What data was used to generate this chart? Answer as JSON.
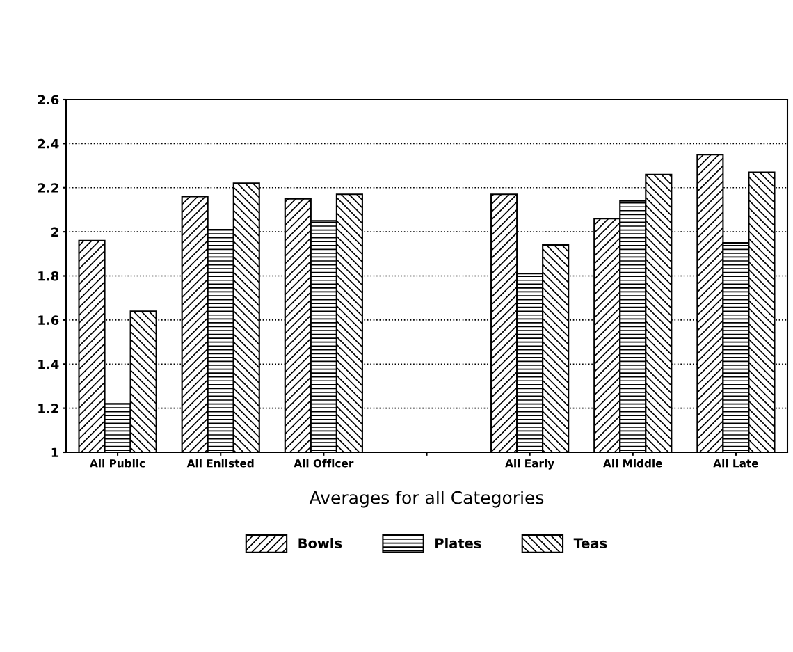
{
  "chart_data": {
    "type": "bar",
    "xlabel": "Averages for all Categories",
    "categories": [
      "All Public",
      "All Enlisted",
      "All Officer",
      null,
      "All Early",
      "All Middle",
      "All Late"
    ],
    "series": [
      {
        "name": "Bowls",
        "color": "#000000",
        "values": [
          1.96,
          2.16,
          2.15,
          null,
          2.17,
          2.06,
          2.35
        ]
      },
      {
        "name": "Plates",
        "color": "#000000",
        "values": [
          1.22,
          2.01,
          2.05,
          null,
          1.81,
          2.14,
          1.95
        ]
      },
      {
        "name": "Teas",
        "color": "#000000",
        "values": [
          1.64,
          2.22,
          2.17,
          null,
          1.94,
          2.26,
          2.27
        ]
      }
    ],
    "ylim": [
      1,
      2.6
    ],
    "yticks": [
      1,
      1.2,
      1.4,
      1.6,
      1.8,
      2,
      2.2,
      2.4,
      2.6
    ],
    "grid": "y",
    "legend": "bottom"
  }
}
